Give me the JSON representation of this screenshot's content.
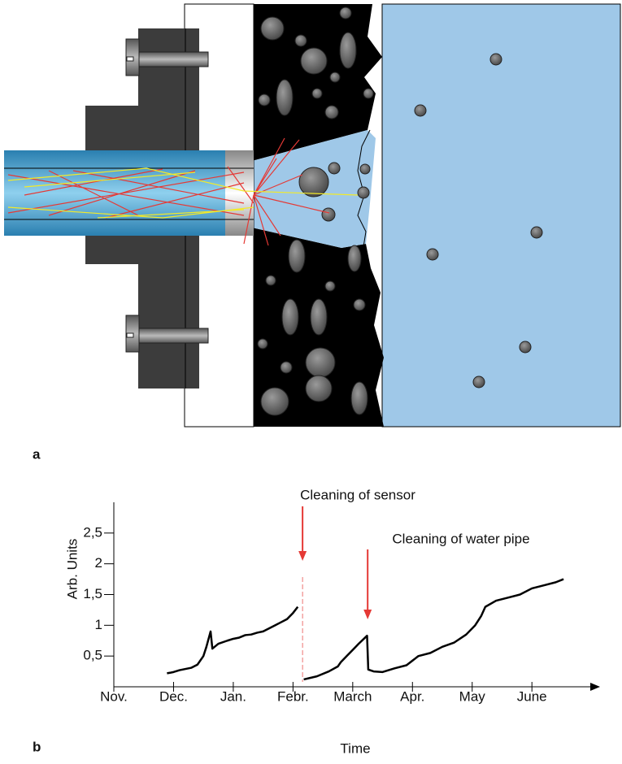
{
  "labels": [
    "a",
    "b"
  ],
  "chart_data": {
    "type": "line",
    "ylabel": "Arb. Units",
    "xlabel": "Time",
    "color": "#000000",
    "annotation_color": "#e53935",
    "xlim": [
      0,
      8.1
    ],
    "xticks": [
      {
        "value": 0,
        "label": "Nov."
      },
      {
        "value": 1,
        "label": "Dec."
      },
      {
        "value": 2,
        "label": "Jan."
      },
      {
        "value": 3,
        "label": "Febr."
      },
      {
        "value": 4,
        "label": "March"
      },
      {
        "value": 5,
        "label": "Apr."
      },
      {
        "value": 6,
        "label": "May"
      },
      {
        "value": 7,
        "label": "June"
      }
    ],
    "ylim": [
      0,
      3
    ],
    "yticks": [
      {
        "value": 0.5,
        "label": "0,5"
      },
      1,
      {
        "value": 1.5,
        "label": "1,5"
      },
      2,
      {
        "value": 2.5,
        "label": "2,5"
      }
    ],
    "x": [
      0.89,
      0.95,
      1.0,
      1.1,
      1.2,
      1.3,
      1.4,
      1.5,
      1.55,
      1.62,
      1.65,
      1.75,
      1.9,
      2.0,
      2.1,
      2.2,
      2.3,
      2.4,
      2.5,
      2.6,
      2.7,
      2.8,
      2.9,
      3.0,
      3.08,
      3.13,
      3.18,
      3.4,
      3.6,
      3.75,
      3.8,
      3.9,
      4.0,
      4.1,
      4.24,
      4.26,
      4.35,
      4.5,
      4.7,
      4.9,
      5.1,
      5.3,
      5.5,
      5.7,
      5.9,
      6.05,
      6.15,
      6.22,
      6.4,
      6.6,
      6.8,
      7.0,
      7.2,
      7.4,
      7.53
    ],
    "values": [
      0.22,
      0.23,
      0.24,
      0.27,
      0.29,
      0.31,
      0.36,
      0.5,
      0.65,
      0.9,
      0.62,
      0.7,
      0.75,
      0.78,
      0.8,
      0.84,
      0.85,
      0.88,
      0.9,
      0.95,
      1.0,
      1.05,
      1.1,
      1.2,
      1.3,
      null,
      0.12,
      0.17,
      0.25,
      0.33,
      0.4,
      0.5,
      0.6,
      0.7,
      0.83,
      0.28,
      0.25,
      0.24,
      0.3,
      0.35,
      0.5,
      0.55,
      0.65,
      0.72,
      0.85,
      1.0,
      1.15,
      1.3,
      1.4,
      1.45,
      1.5,
      1.6,
      1.65,
      1.7,
      1.75
    ],
    "annotations": [
      {
        "text": "Cleaning of sensor",
        "x": 3.16
      },
      {
        "text": "Cleaning of water pipe",
        "x": 4.25
      }
    ]
  }
}
